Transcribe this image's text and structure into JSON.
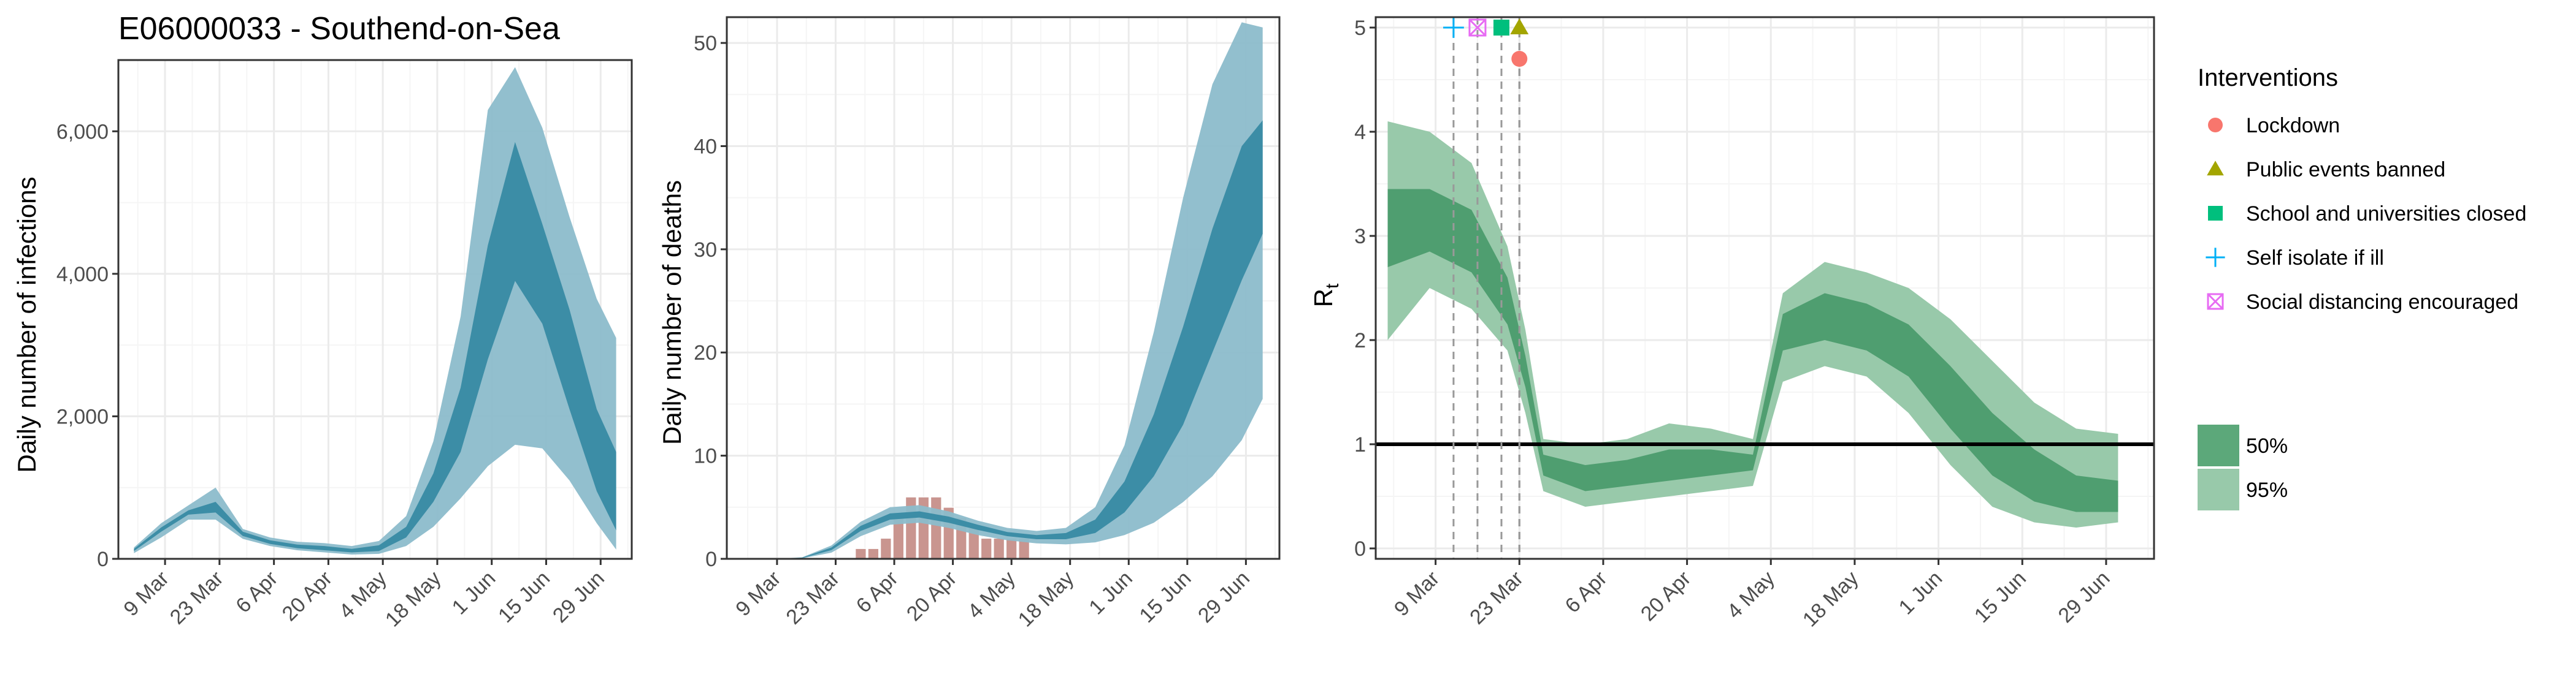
{
  "chart_data": [
    {
      "type": "area",
      "title": "E06000033 - Southend-on-Sea",
      "xlabel": "",
      "ylabel": "Daily number of infections",
      "x_tick_labels": [
        "9 Mar",
        "23 Mar",
        "6 Apr",
        "20 Apr",
        "4 May",
        "18 May",
        "1 Jun",
        "15 Jun",
        "29 Jun"
      ],
      "y_ticks": [
        0,
        2000,
        4000,
        6000
      ],
      "y_tick_labels": [
        "0",
        "2,000",
        "4,000",
        "6,000"
      ],
      "ylim": [
        0,
        7000
      ],
      "grid": true,
      "dates": [
        "2020-03-01",
        "2020-03-08",
        "2020-03-15",
        "2020-03-22",
        "2020-03-29",
        "2020-04-05",
        "2020-04-12",
        "2020-04-19",
        "2020-04-26",
        "2020-05-03",
        "2020-05-10",
        "2020-05-17",
        "2020-05-24",
        "2020-05-31",
        "2020-06-07",
        "2020-06-14",
        "2020-06-21",
        "2020-06-28",
        "2020-07-03"
      ],
      "series": [
        {
          "name": "95%",
          "lower": [
            80,
            300,
            550,
            550,
            280,
            180,
            120,
            90,
            60,
            70,
            180,
            450,
            850,
            1300,
            1600,
            1550,
            1100,
            500,
            130
          ],
          "upper": [
            160,
            500,
            750,
            1000,
            420,
            300,
            240,
            220,
            180,
            250,
            600,
            1650,
            3400,
            6300,
            6900,
            6050,
            4800,
            3650,
            3100
          ]
        },
        {
          "name": "50%",
          "lower": [
            110,
            380,
            620,
            650,
            320,
            210,
            150,
            120,
            90,
            110,
            300,
            800,
            1500,
            2800,
            3900,
            3300,
            2100,
            950,
            400
          ],
          "upper": [
            140,
            440,
            680,
            800,
            380,
            260,
            200,
            180,
            140,
            190,
            450,
            1200,
            2400,
            4400,
            5850,
            4700,
            3500,
            2100,
            1500
          ]
        }
      ]
    },
    {
      "type": "area",
      "title": "",
      "xlabel": "",
      "ylabel": "Daily number of deaths",
      "x_tick_labels": [
        "9 Mar",
        "23 Mar",
        "6 Apr",
        "20 Apr",
        "4 May",
        "18 May",
        "1 Jun",
        "15 Jun",
        "29 Jun"
      ],
      "y_ticks": [
        0,
        10,
        20,
        30,
        40,
        50
      ],
      "y_tick_labels": [
        "0",
        "10",
        "20",
        "30",
        "40",
        "50"
      ],
      "ylim": [
        0,
        52.5
      ],
      "grid": true,
      "dates": [
        "2020-03-01",
        "2020-03-08",
        "2020-03-15",
        "2020-03-22",
        "2020-03-29",
        "2020-04-05",
        "2020-04-12",
        "2020-04-19",
        "2020-04-26",
        "2020-05-03",
        "2020-05-10",
        "2020-05-17",
        "2020-05-24",
        "2020-05-31",
        "2020-06-07",
        "2020-06-14",
        "2020-06-21",
        "2020-06-28",
        "2020-07-03"
      ],
      "series": [
        {
          "name": "95%",
          "lower": [
            0,
            0,
            0.05,
            0.6,
            2.2,
            3.3,
            3.5,
            3.0,
            2.3,
            1.8,
            1.5,
            1.4,
            1.6,
            2.3,
            3.5,
            5.5,
            8.0,
            11.5,
            15.5
          ],
          "upper": [
            0,
            0,
            0.15,
            1.3,
            3.6,
            5.0,
            5.2,
            4.6,
            3.7,
            3.0,
            2.7,
            3.0,
            5.0,
            11.0,
            22.0,
            35.0,
            46.0,
            52.0,
            51.5
          ]
        },
        {
          "name": "50%",
          "lower": [
            0,
            0,
            0.08,
            0.85,
            2.7,
            3.8,
            4.0,
            3.5,
            2.8,
            2.2,
            1.9,
            1.9,
            2.5,
            4.5,
            8.0,
            13.0,
            20.0,
            27.0,
            31.5
          ]
        },
        {
          "name": "50%",
          "upper": [
            0,
            0,
            0.12,
            1.1,
            3.2,
            4.4,
            4.6,
            4.1,
            3.3,
            2.6,
            2.3,
            2.5,
            3.8,
            7.5,
            14.0,
            22.5,
            32.0,
            40.0,
            42.5
          ]
        }
      ],
      "bars": {
        "name": "reported deaths",
        "dates": [
          "2020-03-29",
          "2020-04-01",
          "2020-04-04",
          "2020-04-07",
          "2020-04-10",
          "2020-04-13",
          "2020-04-16",
          "2020-04-19",
          "2020-04-22",
          "2020-04-25",
          "2020-04-28",
          "2020-05-01",
          "2020-05-04",
          "2020-05-07"
        ],
        "values": [
          1,
          1,
          2,
          4,
          6,
          6,
          6,
          5,
          4,
          3,
          2,
          2,
          2,
          2
        ]
      }
    },
    {
      "type": "area",
      "title": "",
      "xlabel": "",
      "ylabel": "Rt",
      "x_tick_labels": [
        "9 Mar",
        "23 Mar",
        "6 Apr",
        "20 Apr",
        "4 May",
        "18 May",
        "1 Jun",
        "15 Jun",
        "29 Jun"
      ],
      "y_ticks": [
        0,
        1,
        2,
        3,
        4,
        5
      ],
      "y_tick_labels": [
        "0",
        "1",
        "2",
        "3",
        "4",
        "5"
      ],
      "ylim": [
        -0.1,
        5.1
      ],
      "grid": true,
      "reference_line": 1,
      "dates": [
        "2020-03-01",
        "2020-03-08",
        "2020-03-15",
        "2020-03-21",
        "2020-03-24",
        "2020-03-27",
        "2020-04-03",
        "2020-04-10",
        "2020-04-17",
        "2020-04-24",
        "2020-05-01",
        "2020-05-06",
        "2020-05-13",
        "2020-05-20",
        "2020-05-27",
        "2020-06-03",
        "2020-06-10",
        "2020-06-17",
        "2020-06-24",
        "2020-07-01"
      ],
      "series": [
        {
          "name": "95%",
          "lower": [
            2.0,
            2.5,
            2.3,
            1.9,
            1.3,
            0.55,
            0.4,
            0.45,
            0.5,
            0.55,
            0.6,
            1.6,
            1.75,
            1.65,
            1.3,
            0.8,
            0.4,
            0.25,
            0.2,
            0.25
          ],
          "upper": [
            4.1,
            4.0,
            3.7,
            2.9,
            2.1,
            1.05,
            1.0,
            1.05,
            1.2,
            1.15,
            1.05,
            2.45,
            2.75,
            2.65,
            2.5,
            2.2,
            1.8,
            1.4,
            1.15,
            1.1
          ]
        },
        {
          "name": "50%",
          "lower": [
            2.7,
            2.85,
            2.65,
            2.15,
            1.55,
            0.7,
            0.55,
            0.6,
            0.65,
            0.7,
            0.75,
            1.9,
            2.0,
            1.9,
            1.65,
            1.15,
            0.7,
            0.45,
            0.35,
            0.35
          ],
          "upper": [
            3.45,
            3.45,
            3.25,
            2.6,
            1.85,
            0.9,
            0.8,
            0.85,
            0.95,
            0.95,
            0.9,
            2.25,
            2.45,
            2.35,
            2.15,
            1.75,
            1.3,
            0.95,
            0.7,
            0.65
          ]
        }
      ],
      "interventions": [
        {
          "name": "Lockdown",
          "date": "2020-03-23",
          "y": 4.7
        },
        {
          "name": "Public events banned",
          "date": "2020-03-23",
          "y": 5.0
        },
        {
          "name": "School and universities closed",
          "date": "2020-03-20",
          "y": 5.0
        },
        {
          "name": "Self isolate if ill",
          "date": "2020-03-12",
          "y": 5.0
        },
        {
          "name": "Social distancing encouraged",
          "date": "2020-03-16",
          "y": 5.0
        }
      ]
    }
  ],
  "legend": {
    "interventions_title": "Interventions",
    "interventions": [
      {
        "label": "Lockdown",
        "color": "#F8766D",
        "icon": "circle-icon"
      },
      {
        "label": "Public events banned",
        "color": "#A3A500",
        "icon": "triangle-icon"
      },
      {
        "label": "School and universities closed",
        "color": "#00BF7D",
        "icon": "square-icon"
      },
      {
        "label": "Self isolate if ill",
        "color": "#00B0F6",
        "icon": "plus-icon"
      },
      {
        "label": "Social distancing encouraged",
        "color": "#E76BF3",
        "icon": "square-cross-icon"
      }
    ],
    "bands": [
      {
        "label": "50%",
        "color": "#5CA87A"
      },
      {
        "label": "95%",
        "color": "#98C9AA"
      }
    ]
  },
  "colors": {
    "blue_band_95": "#8CBCCB",
    "blue_band_50": "#3C8DA6",
    "blue_line": "#2C7A92",
    "deaths_bar": "#C9958F",
    "green_band_95": "#98C9AA",
    "green_band_50": "#4F9E70",
    "reference_line": "#000000",
    "grid_major": "#EBEBEB",
    "grid_minor": "#F5F5F5"
  }
}
